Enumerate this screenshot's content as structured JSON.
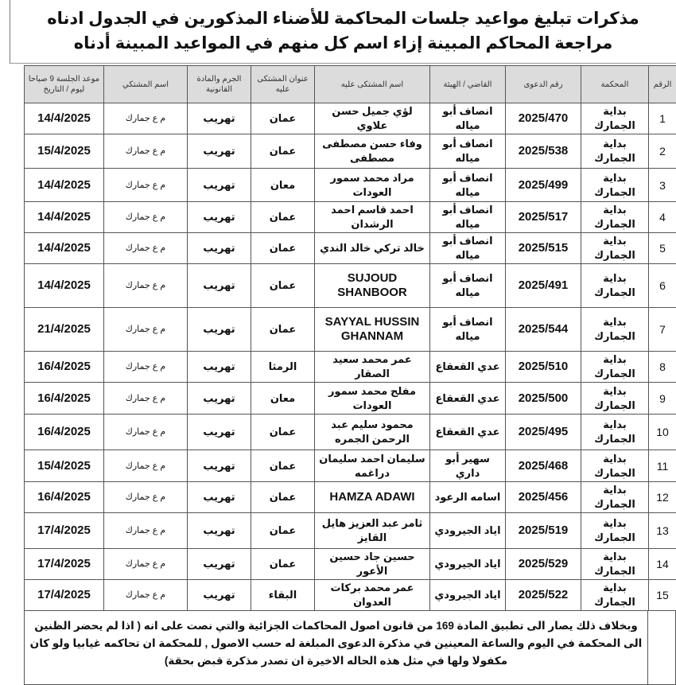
{
  "title": "مذكرات تبليغ مواعيد جلسات المحاكمة للأضناء المذكورين في الجدول ادناه مراجعة المحاكم المبينة إزاء اسم كل منهم في المواعيد المبينة أدناه",
  "table": {
    "headers": [
      "الرقم",
      "المحكمة",
      "رقم الدعوى",
      "القاضي / الهيئة",
      "اسم المشتكى عليه",
      "عنوان المشتكى عليه",
      "الجرم والمادة القانونية",
      "اسم المشتكي",
      "موعد الجلسة 9 صباحا ليوم / التاريخ"
    ],
    "rows": [
      {
        "num": "1",
        "court": "بداية الجمارك",
        "case": "2025/470",
        "judge": "انصاف أبو مياله",
        "name": "لؤي جميل حسن علاوي",
        "address": "عمان",
        "crime": "تهريب",
        "complainant": "م ع جمارك",
        "date": "14/4/2025"
      },
      {
        "num": "2",
        "court": "بداية الجمارك",
        "case": "2025/538",
        "judge": "انصاف أبو مياله",
        "name": "وفاء حسن مصطفى مصطفى",
        "address": "عمان",
        "crime": "تهريب",
        "complainant": "م ع جمارك",
        "date": "15/4/2025"
      },
      {
        "num": "3",
        "court": "بداية الجمارك",
        "case": "2025/499",
        "judge": "انصاف أبو مياله",
        "name": "مراد محمد سمور العودات",
        "address": "معان",
        "crime": "تهريب",
        "complainant": "م ع جمارك",
        "date": "14/4/2025"
      },
      {
        "num": "4",
        "court": "بداية الجمارك",
        "case": "2025/517",
        "judge": "انصاف أبو مياله",
        "name": "احمد قاسم احمد الرشدان",
        "address": "عمان",
        "crime": "تهريب",
        "complainant": "م ع جمارك",
        "date": "14/4/2025"
      },
      {
        "num": "5",
        "court": "بداية الجمارك",
        "case": "2025/515",
        "judge": "انصاف أبو مياله",
        "name": "خالد تركي خالد الندي",
        "address": "عمان",
        "crime": "تهريب",
        "complainant": "م ع جمارك",
        "date": "14/4/2025"
      },
      {
        "num": "6",
        "court": "بداية الجمارك",
        "case": "2025/491",
        "judge": "انصاف أبو مياله",
        "name": "SUJOUD SHANBOOR",
        "address": "عمان",
        "crime": "تهريب",
        "complainant": "م ع جمارك",
        "date": "14/4/2025"
      },
      {
        "num": "7",
        "court": "بداية الجمارك",
        "case": "2025/544",
        "judge": "انصاف أبو مياله",
        "name": "SAYYAL HUSSIN GHANNAM",
        "address": "عمان",
        "crime": "تهريب",
        "complainant": "م ع جمارك",
        "date": "21/4/2025"
      },
      {
        "num": "8",
        "court": "بداية الجمارك",
        "case": "2025/510",
        "judge": "عدي القعقاع",
        "name": "عمر محمد سعيد الصقار",
        "address": "الرمثا",
        "crime": "تهريب",
        "complainant": "م ع جمارك",
        "date": "16/4/2025"
      },
      {
        "num": "9",
        "court": "بداية الجمارك",
        "case": "2025/500",
        "judge": "عدي القعقاع",
        "name": "مفلح محمد سمور العودات",
        "address": "معان",
        "crime": "تهريب",
        "complainant": "م ع جمارك",
        "date": "16/4/2025"
      },
      {
        "num": "10",
        "court": "بداية الجمارك",
        "case": "2025/495",
        "judge": "عدي القعقاع",
        "name": "محمود سليم عبد الرحمن الجمره",
        "address": "عمان",
        "crime": "تهريب",
        "complainant": "م ع جمارك",
        "date": "16/4/2025"
      },
      {
        "num": "11",
        "court": "بداية الجمارك",
        "case": "2025/468",
        "judge": "سهير أبو داري",
        "name": "سليمان احمد سليمان دراغمه",
        "address": "عمان",
        "crime": "تهريب",
        "complainant": "م ع جمارك",
        "date": "15/4/2025"
      },
      {
        "num": "12",
        "court": "بداية الجمارك",
        "case": "2025/456",
        "judge": "اسامه الرعود",
        "name": "HAMZA ADAWI",
        "address": "عمان",
        "crime": "تهريب",
        "complainant": "م ع جمارك",
        "date": "16/4/2025"
      },
      {
        "num": "13",
        "court": "بداية الجمارك",
        "case": "2025/519",
        "judge": "اياد الجيرودي",
        "name": "ثامر عبد العزيز هايل القايز",
        "address": "عمان",
        "crime": "تهريب",
        "complainant": "م ع جمارك",
        "date": "17/4/2025"
      },
      {
        "num": "14",
        "court": "بداية الجمارك",
        "case": "2025/529",
        "judge": "اياد الجيرودي",
        "name": "حسين جاد حسين الأعور",
        "address": "عمان",
        "crime": "تهريب",
        "complainant": "م ع جمارك",
        "date": "17/4/2025"
      },
      {
        "num": "15",
        "court": "بداية الجمارك",
        "case": "2025/522",
        "judge": "اياد الجيرودي",
        "name": "عمر محمد بركات العدوان",
        "address": "البقاء",
        "crime": "تهريب",
        "complainant": "م ع جمارك",
        "date": "17/4/2025"
      }
    ]
  },
  "footer": "وبخلاف ذلك يصار الى تطبيق المادة 169 من قانون اصول المحاكمات الجزائية والتي نصت على انه ( اذا لم يحضر الظنين الى المحكمة في اليوم والساعة المعينين في مذكرة الدعوى المبلغة له حسب الاصول , للمحكمة ان تحاكمه غيابيا ولو كان مكفولا ولها في مثل هذه الحاله الاخيرة ان تصدر مذكرة قبض بحقة)"
}
